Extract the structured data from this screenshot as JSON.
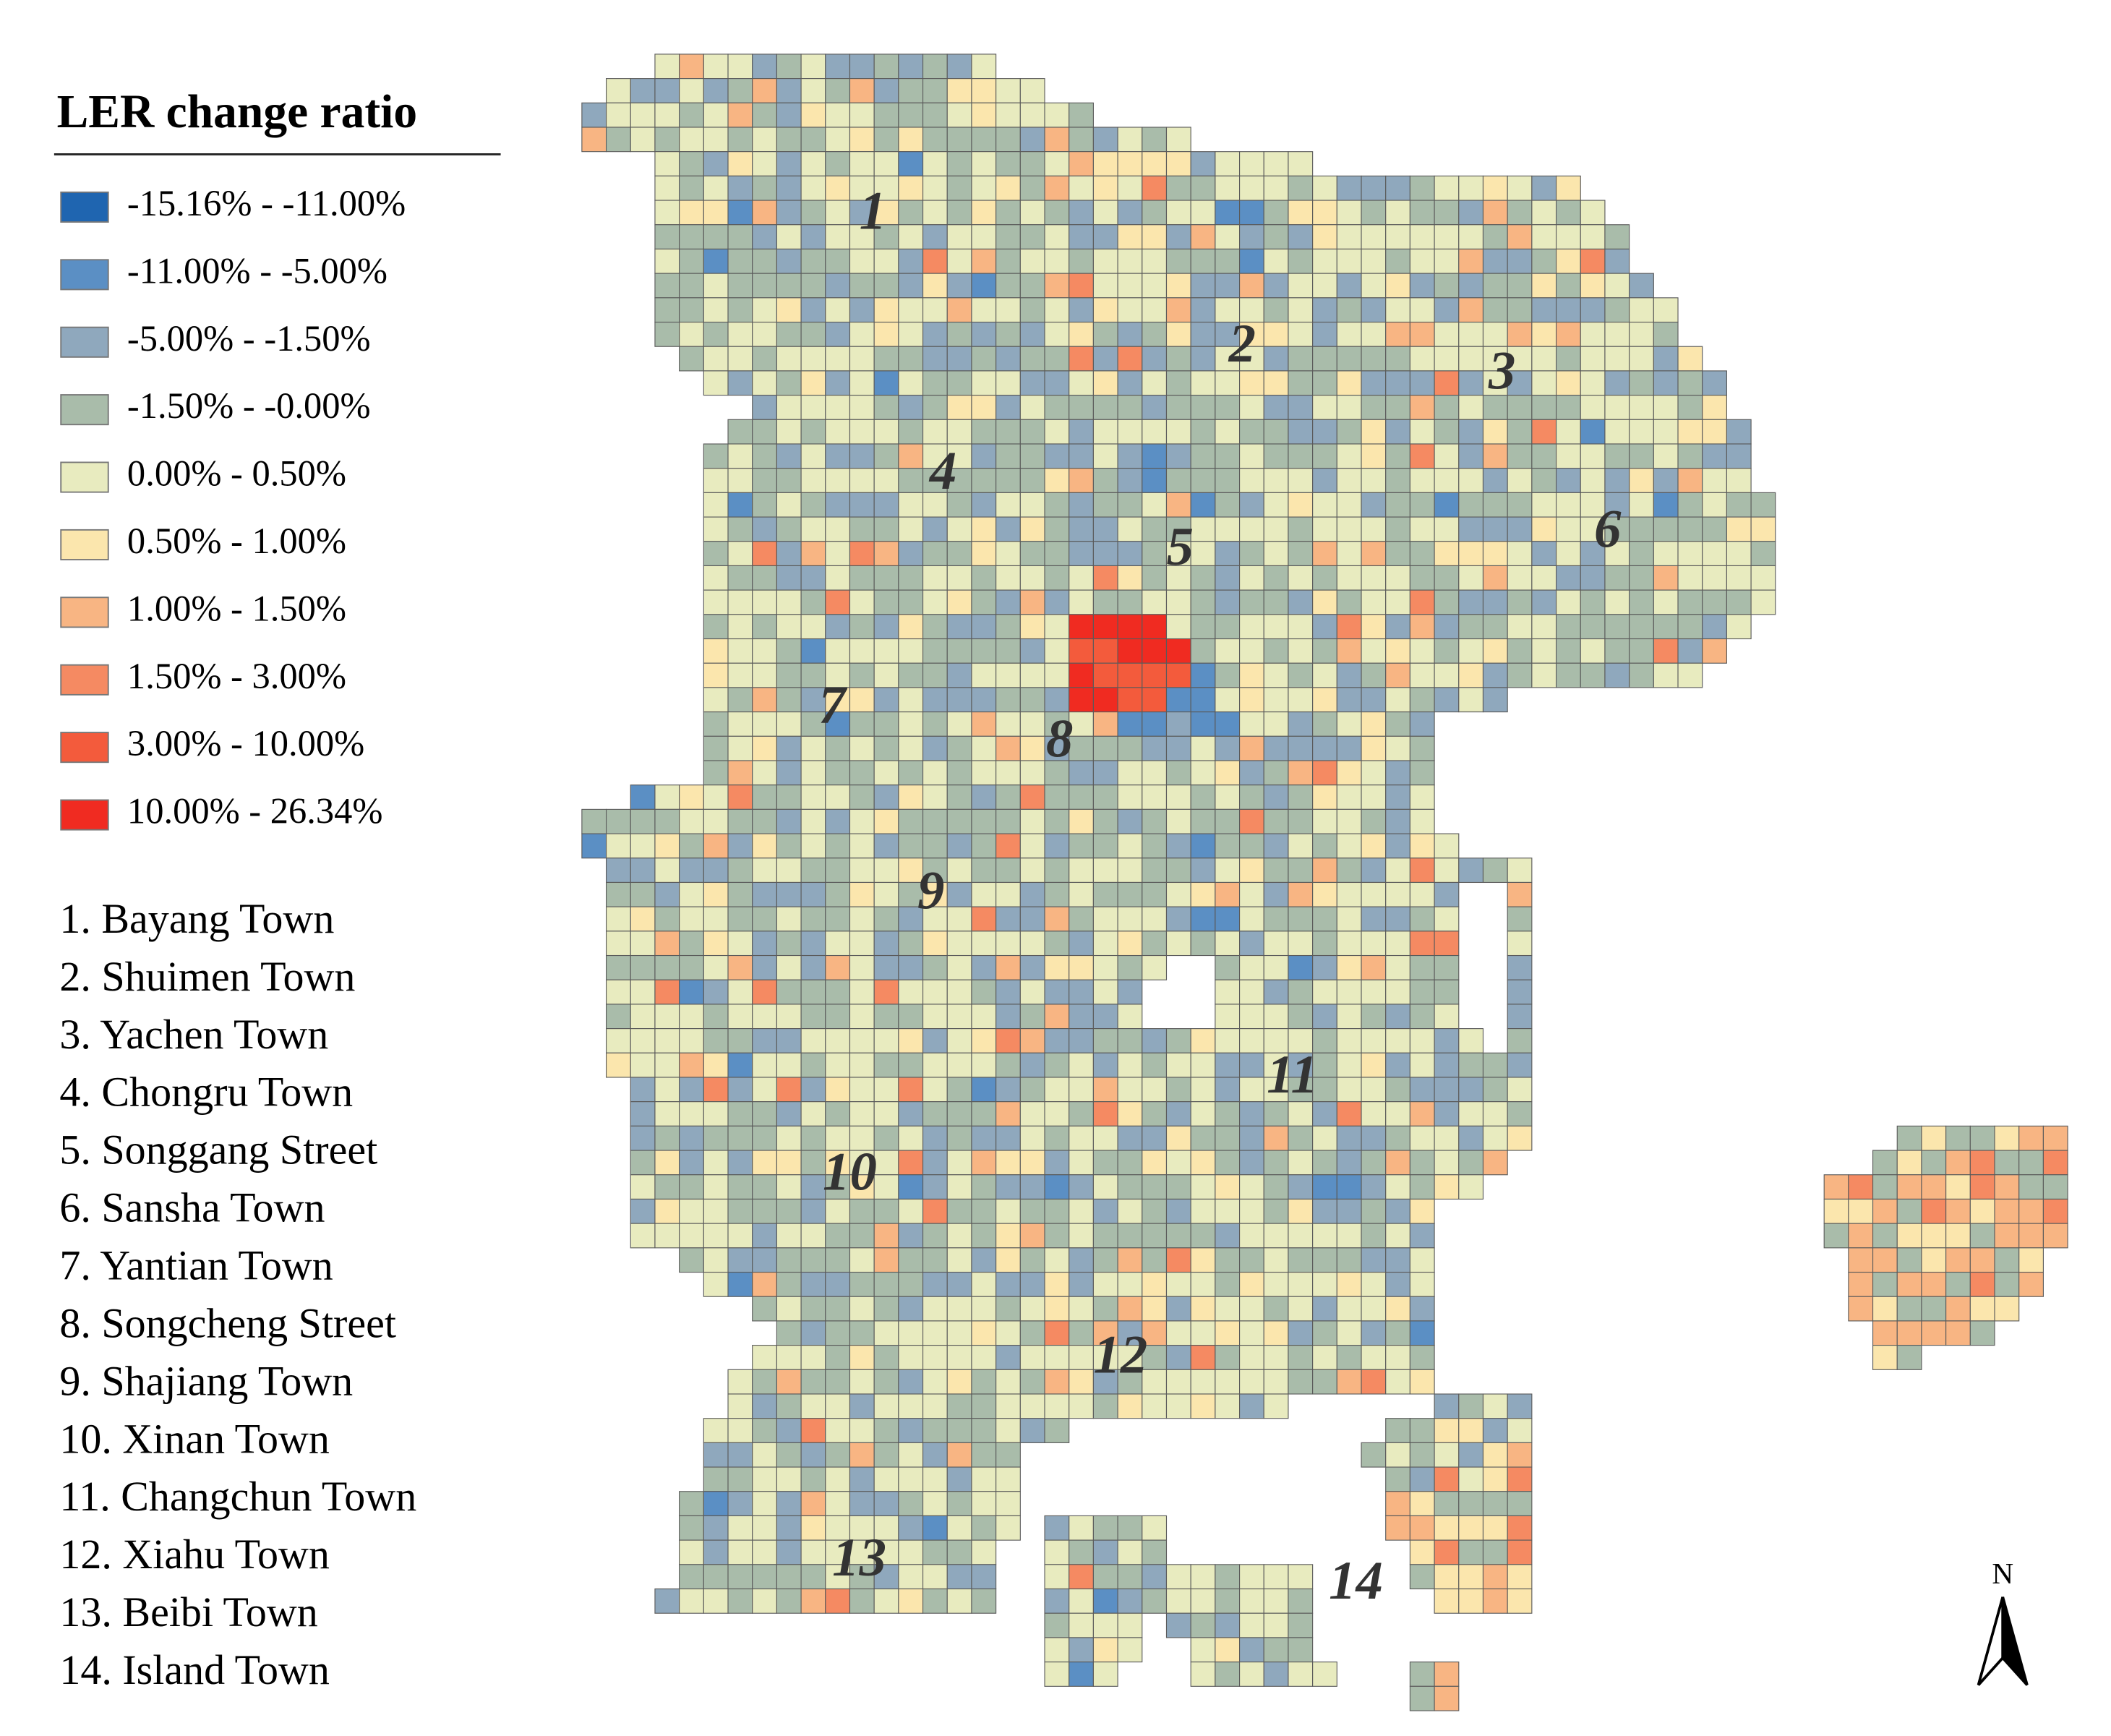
{
  "title": "LER change ratio",
  "legend": [
    {
      "label": "-15.16% -  -11.00%",
      "color": "#1f65b0"
    },
    {
      "label": "-11.00% -  -5.00%",
      "color": "#5b8fc4"
    },
    {
      "label": "-5.00% -  -1.50%",
      "color": "#8fa8bd"
    },
    {
      "label": "-1.50% -  -0.00%",
      "color": "#a9bcaa"
    },
    {
      "label": "0.00% -  0.50%",
      "color": "#e8ebbf"
    },
    {
      "label": "0.50% -  1.00%",
      "color": "#fbe6ad"
    },
    {
      "label": "1.00% -  1.50%",
      "color": "#f8b583"
    },
    {
      "label": "1.50% -  3.00%",
      "color": "#f58a62"
    },
    {
      "label": "3.00% -  10.00%",
      "color": "#f35b3c"
    },
    {
      "label": "10.00% -  26.34%",
      "color": "#f02b21"
    }
  ],
  "towns": [
    "1. Bayang Town",
    "2. Shuimen Town",
    "3. Yachen Town",
    "4. Chongru Town",
    "5. Songgang Street",
    "6. Sansha Town",
    "7. Yantian Town",
    "8. Songcheng Street",
    "9. Shajiang Town",
    "10. Xinan Town",
    "11. Changchun Town",
    "12. Xiahu Town",
    "13. Beibi Town",
    "14. Island Town"
  ],
  "map_labels": [
    "1",
    "2",
    "3",
    "4",
    "5",
    "6",
    "7",
    "8",
    "9",
    "10",
    "11",
    "12",
    "13",
    "14"
  ],
  "north": "N"
}
